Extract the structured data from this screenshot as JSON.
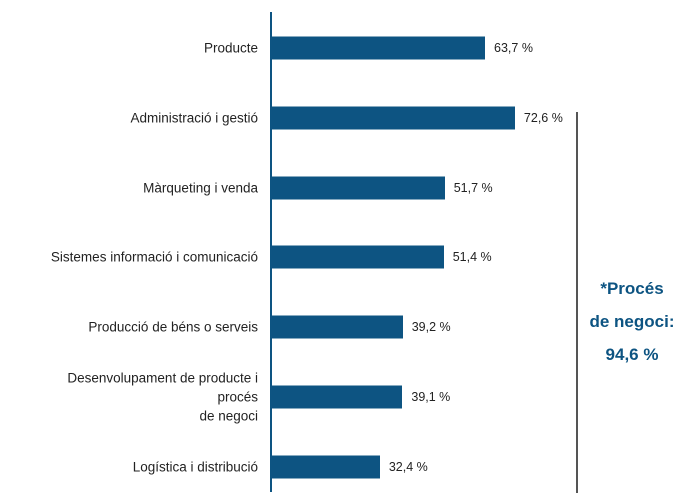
{
  "chart_data": {
    "type": "bar",
    "orientation": "horizontal",
    "categories": [
      "Producte",
      "Administració i gestió",
      "Màrqueting i venda",
      "Sistemes informació i comunicació",
      "Producció de béns o serveis",
      "Desenvolupament de producte i\nprocés\nde negoci",
      "Logística i distribució"
    ],
    "values": [
      63.7,
      72.6,
      51.7,
      51.4,
      39.2,
      39.1,
      32.4
    ],
    "value_labels": [
      "63,7 %",
      "72,6 %",
      "51,7 %",
      "51,4 %",
      "39,2 %",
      "39,1 %",
      "32,4 %"
    ],
    "color": "#0d5482",
    "annotation": [
      "*Procés",
      "de negoci:",
      "94,6 %"
    ]
  }
}
